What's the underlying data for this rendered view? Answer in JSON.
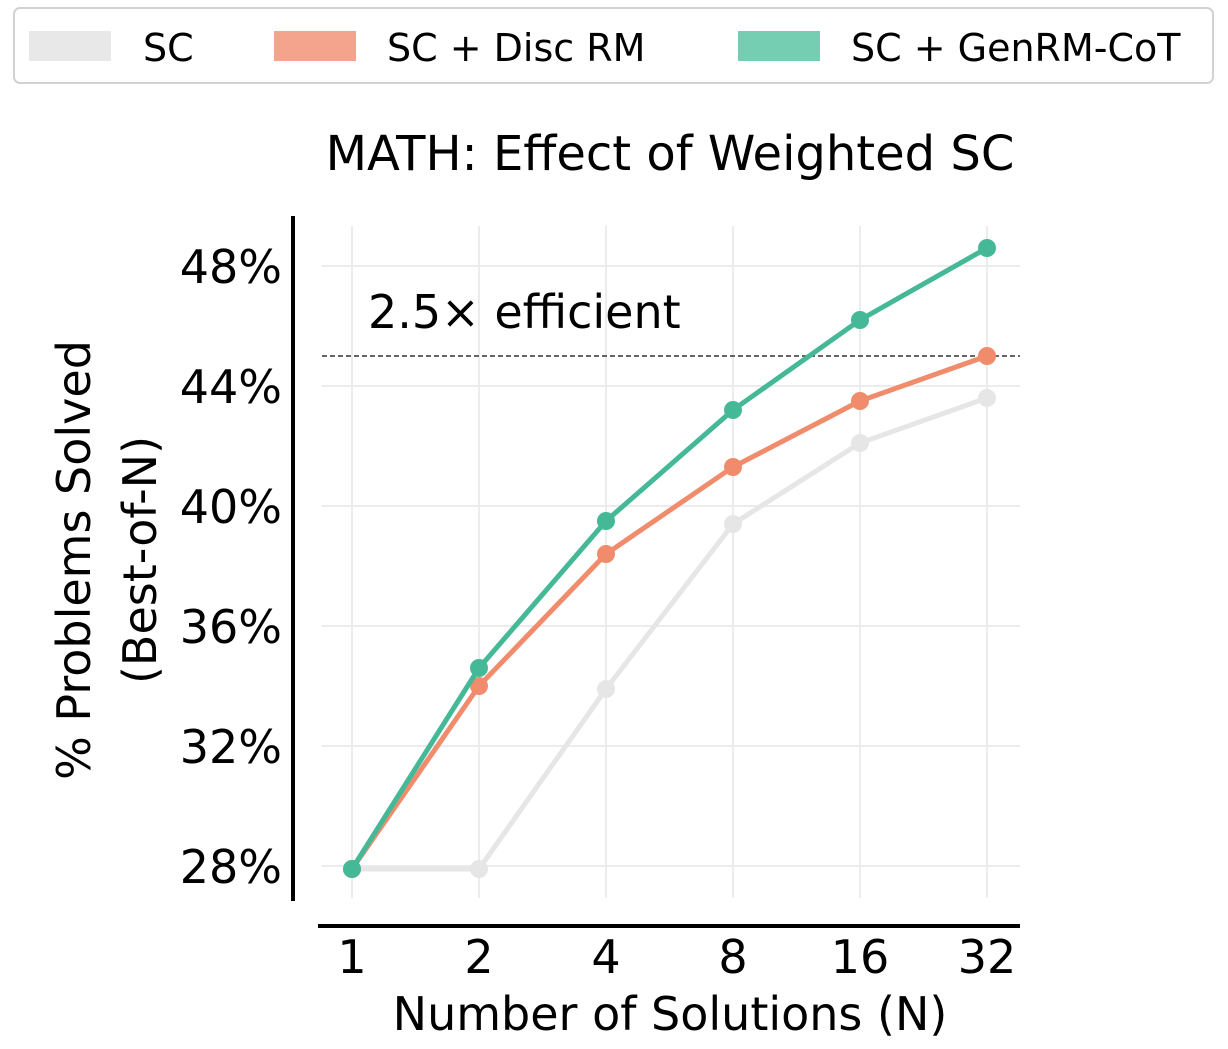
{
  "chart_data": {
    "type": "line",
    "title": "MATH: Effect of Weighted SC",
    "xlabel": "Number of Solutions (N)",
    "ylabel": [
      "% Problems Solved",
      "(Best-of-N)"
    ],
    "x": [
      1,
      2,
      4,
      8,
      16,
      32
    ],
    "x_tick_labels": [
      "1",
      "2",
      "4",
      "8",
      "16",
      "32"
    ],
    "x_scale": "log2",
    "y_ticks": [
      28,
      32,
      36,
      40,
      44,
      48
    ],
    "y_tick_labels": [
      "28%",
      "32%",
      "36%",
      "40%",
      "44%",
      "48%"
    ],
    "ylim": [
      27.2,
      49.7
    ],
    "grid": true,
    "legend_position": "top",
    "series": [
      {
        "name": "SC",
        "color": "#e6e6e6",
        "values": [
          27.9,
          27.9,
          33.9,
          39.4,
          42.1,
          43.6
        ]
      },
      {
        "name": "SC + Disc RM",
        "color": "#f08c6c",
        "values": [
          27.9,
          34.0,
          38.4,
          41.3,
          43.5,
          45.0
        ]
      },
      {
        "name": "SC + GenRM-CoT",
        "color": "#45b997",
        "values": [
          27.9,
          34.6,
          39.5,
          43.2,
          46.2,
          48.6
        ]
      }
    ],
    "legend_swatch_colors": [
      "#e8e8e8",
      "#f4a48c",
      "#75cdb2"
    ],
    "annotation": {
      "text": "2.5× efficient",
      "reference_line_y": 45.0,
      "line_style": "dashed"
    }
  }
}
